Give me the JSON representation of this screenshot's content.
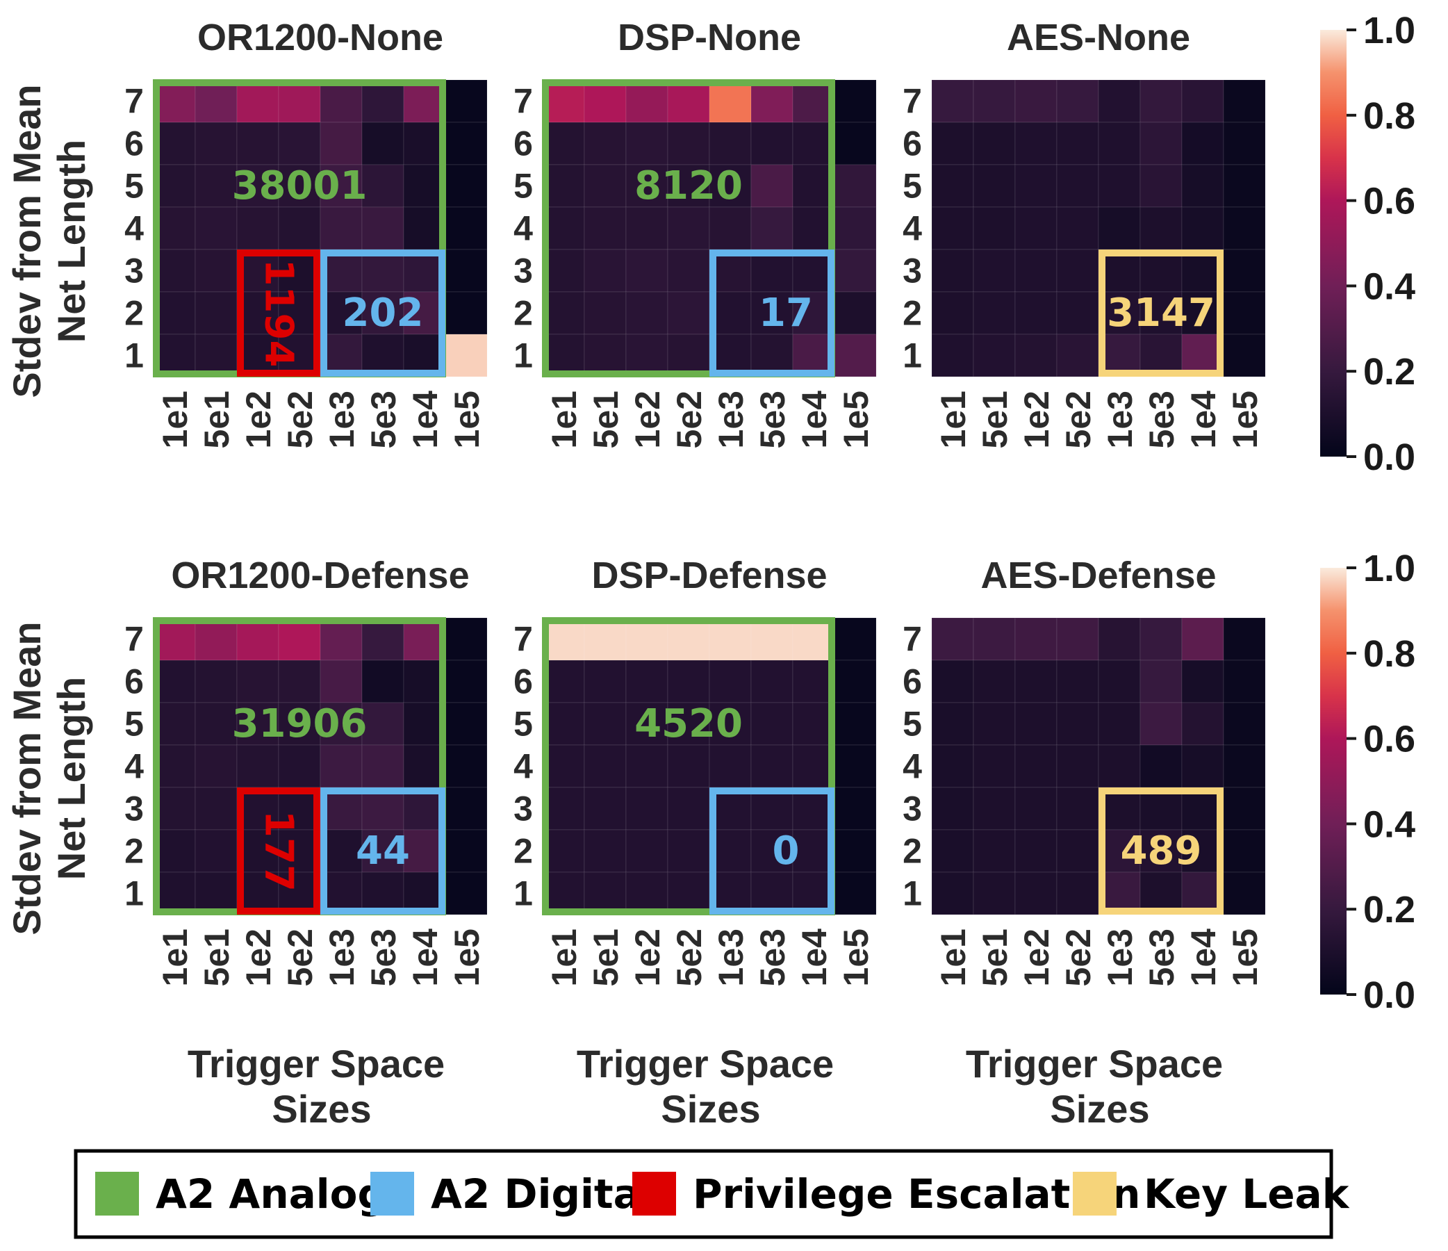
{
  "chart_data": {
    "type": "heatmap",
    "x_ticks": [
      "1e1",
      "5e1",
      "1e2",
      "5e2",
      "1e3",
      "5e3",
      "1e4",
      "1e5"
    ],
    "y_ticks": [
      "7",
      "6",
      "5",
      "4",
      "3",
      "2",
      "1"
    ],
    "xlabel": "Trigger Space Sizes",
    "ylabel": "Stdev from Mean Net Length",
    "colorbar": {
      "min": 0.0,
      "max": 1.0,
      "ticks": [
        "0.0",
        "0.2",
        "0.4",
        "0.6",
        "0.8",
        "1.0"
      ]
    },
    "legend": {
      "placement": "bottom",
      "items": [
        {
          "label": "A2 Analog",
          "color": "#6ab04c"
        },
        {
          "label": "A2 Digital",
          "color": "#64b5ec"
        },
        {
          "label": "Privilege Escalation",
          "color": "#dd0000"
        },
        {
          "label": "Key Leak",
          "color": "#f6d47a"
        }
      ]
    },
    "panels": [
      {
        "title": "OR1200-None",
        "values": [
          [
            0.46,
            0.4,
            0.56,
            0.55,
            0.27,
            0.17,
            0.44,
            0.02
          ],
          [
            0.13,
            0.14,
            0.14,
            0.15,
            0.25,
            0.08,
            0.09,
            0.02
          ],
          [
            0.13,
            0.14,
            0.15,
            0.14,
            0.22,
            0.16,
            0.08,
            0.02
          ],
          [
            0.14,
            0.15,
            0.14,
            0.13,
            0.21,
            0.21,
            0.08,
            0.02
          ],
          [
            0.13,
            0.14,
            0.14,
            0.1,
            0.19,
            0.19,
            0.17,
            0.02
          ],
          [
            0.12,
            0.13,
            0.12,
            0.11,
            0.12,
            0.18,
            0.25,
            0.02
          ],
          [
            0.12,
            0.13,
            0.11,
            0.12,
            0.19,
            0.11,
            0.09,
            0.97
          ]
        ],
        "annotations": [
          {
            "legend": "A2 Analog",
            "text": "38001",
            "orientation": "horizontal"
          },
          {
            "legend": "Privilege Escalation",
            "text": "1194",
            "orientation": "vertical"
          },
          {
            "legend": "A2 Digital",
            "text": "202",
            "orientation": "horizontal"
          }
        ]
      },
      {
        "title": "DSP-None",
        "values": [
          [
            0.62,
            0.6,
            0.52,
            0.58,
            0.84,
            0.45,
            0.28,
            0.02
          ],
          [
            0.13,
            0.14,
            0.15,
            0.14,
            0.13,
            0.12,
            0.12,
            0.02
          ],
          [
            0.13,
            0.14,
            0.14,
            0.13,
            0.12,
            0.27,
            0.12,
            0.18
          ],
          [
            0.13,
            0.14,
            0.14,
            0.15,
            0.14,
            0.2,
            0.12,
            0.17
          ],
          [
            0.13,
            0.15,
            0.16,
            0.15,
            0.14,
            0.12,
            0.12,
            0.19
          ],
          [
            0.13,
            0.14,
            0.15,
            0.16,
            0.12,
            0.12,
            0.17,
            0.1
          ],
          [
            0.13,
            0.14,
            0.15,
            0.14,
            0.12,
            0.13,
            0.27,
            0.3
          ]
        ],
        "annotations": [
          {
            "legend": "A2 Analog",
            "text": "8120",
            "orientation": "horizontal"
          },
          {
            "legend": "A2 Digital",
            "text": "17",
            "orientation": "horizontal"
          }
        ]
      },
      {
        "title": "AES-None",
        "values": [
          [
            0.2,
            0.2,
            0.21,
            0.2,
            0.12,
            0.19,
            0.15,
            0.03
          ],
          [
            0.1,
            0.1,
            0.11,
            0.11,
            0.11,
            0.16,
            0.07,
            0.03
          ],
          [
            0.1,
            0.1,
            0.11,
            0.11,
            0.11,
            0.15,
            0.08,
            0.03
          ],
          [
            0.1,
            0.1,
            0.11,
            0.11,
            0.08,
            0.1,
            0.08,
            0.03
          ],
          [
            0.1,
            0.11,
            0.11,
            0.11,
            0.1,
            0.1,
            0.08,
            0.03
          ],
          [
            0.1,
            0.11,
            0.11,
            0.11,
            0.12,
            0.11,
            0.08,
            0.03
          ],
          [
            0.11,
            0.12,
            0.13,
            0.15,
            0.2,
            0.15,
            0.35,
            0.03
          ]
        ],
        "annotations": [
          {
            "legend": "Key Leak",
            "text": "3147",
            "orientation": "horizontal"
          }
        ]
      },
      {
        "title": "OR1200-Defense",
        "values": [
          [
            0.56,
            0.51,
            0.57,
            0.6,
            0.36,
            0.2,
            0.43,
            0.02
          ],
          [
            0.12,
            0.13,
            0.14,
            0.14,
            0.26,
            0.06,
            0.08,
            0.02
          ],
          [
            0.13,
            0.13,
            0.14,
            0.13,
            0.18,
            0.19,
            0.08,
            0.02
          ],
          [
            0.13,
            0.14,
            0.13,
            0.12,
            0.22,
            0.22,
            0.09,
            0.02
          ],
          [
            0.13,
            0.13,
            0.12,
            0.11,
            0.21,
            0.22,
            0.17,
            0.02
          ],
          [
            0.11,
            0.12,
            0.11,
            0.11,
            0.11,
            0.19,
            0.25,
            0.02
          ],
          [
            0.11,
            0.11,
            0.11,
            0.11,
            0.12,
            0.11,
            0.09,
            0.02
          ]
        ],
        "annotations": [
          {
            "legend": "A2 Analog",
            "text": "31906",
            "orientation": "horizontal"
          },
          {
            "legend": "Privilege Escalation",
            "text": "177",
            "orientation": "vertical"
          },
          {
            "legend": "A2 Digital",
            "text": "44",
            "orientation": "horizontal"
          }
        ]
      },
      {
        "title": "DSP-Defense",
        "values": [
          [
            0.98,
            0.98,
            0.98,
            0.98,
            0.98,
            0.98,
            0.98,
            0.02
          ],
          [
            0.12,
            0.12,
            0.12,
            0.12,
            0.12,
            0.12,
            0.12,
            0.02
          ],
          [
            0.12,
            0.12,
            0.12,
            0.12,
            0.12,
            0.12,
            0.12,
            0.02
          ],
          [
            0.12,
            0.12,
            0.12,
            0.12,
            0.12,
            0.12,
            0.12,
            0.02
          ],
          [
            0.12,
            0.12,
            0.12,
            0.12,
            0.12,
            0.12,
            0.12,
            0.02
          ],
          [
            0.12,
            0.12,
            0.12,
            0.12,
            0.12,
            0.12,
            0.12,
            0.02
          ],
          [
            0.12,
            0.12,
            0.12,
            0.12,
            0.12,
            0.12,
            0.12,
            0.02
          ]
        ],
        "annotations": [
          {
            "legend": "A2 Analog",
            "text": "4520",
            "orientation": "horizontal"
          },
          {
            "legend": "A2 Digital",
            "text": "0",
            "orientation": "horizontal"
          }
        ]
      },
      {
        "title": "AES-Defense",
        "values": [
          [
            0.22,
            0.22,
            0.23,
            0.23,
            0.14,
            0.2,
            0.33,
            0.03
          ],
          [
            0.09,
            0.1,
            0.1,
            0.1,
            0.1,
            0.2,
            0.08,
            0.03
          ],
          [
            0.09,
            0.1,
            0.1,
            0.1,
            0.1,
            0.22,
            0.13,
            0.03
          ],
          [
            0.09,
            0.1,
            0.1,
            0.1,
            0.1,
            0.06,
            0.08,
            0.03
          ],
          [
            0.09,
            0.1,
            0.1,
            0.1,
            0.1,
            0.09,
            0.08,
            0.03
          ],
          [
            0.09,
            0.1,
            0.1,
            0.1,
            0.16,
            0.12,
            0.09,
            0.03
          ],
          [
            0.09,
            0.1,
            0.1,
            0.1,
            0.21,
            0.1,
            0.19,
            0.03
          ]
        ],
        "annotations": [
          {
            "legend": "Key Leak",
            "text": "489",
            "orientation": "horizontal"
          }
        ]
      }
    ]
  }
}
